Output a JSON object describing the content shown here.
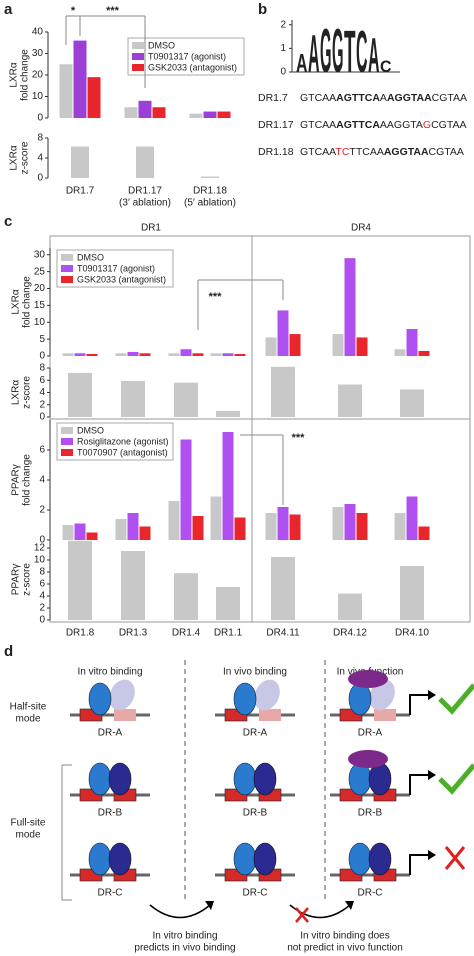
{
  "panels": [
    "a",
    "b",
    "c",
    "d"
  ],
  "chart_data": [
    {
      "type": "bar",
      "y_label": [
        "LXRα",
        "fold change"
      ],
      "ylim": [
        0,
        40
      ],
      "yticks": [
        0,
        10,
        20,
        30,
        40
      ],
      "legend": "top-right",
      "series": [
        {
          "name": "DMSO",
          "color": "#c8c8c8",
          "values": [
            25,
            5,
            2
          ]
        },
        {
          "name": "T0901317 (agonist)",
          "color": "#9b3fd6",
          "values": [
            36,
            8,
            3
          ]
        },
        {
          "name": "GSK2033 (antagonist)",
          "color": "#e8262b",
          "values": [
            19,
            5,
            3
          ]
        }
      ],
      "annotations": [
        "*",
        "***"
      ]
    },
    {
      "type": "bar",
      "y_label": [
        "LXRα",
        "z-score"
      ],
      "ylim": [
        0,
        8
      ],
      "yticks": [
        0,
        4,
        8
      ],
      "color": "#c8c8c8",
      "categories": [
        "DR1.7",
        "DR1.17",
        "DR1.18"
      ],
      "category_sublabels": [
        null,
        "(3′ ablation)",
        "(5′ ablation)"
      ],
      "values": [
        6.3,
        6.3,
        0.3
      ]
    },
    {
      "type": "bar",
      "group_labels": [
        "DR1",
        "DR4"
      ],
      "y_label": [
        "LXRα",
        "fold change"
      ],
      "ylim": [
        0,
        32
      ],
      "yticks": [
        0,
        5,
        10,
        15,
        20,
        25,
        30
      ],
      "legend": "top-left",
      "series": [
        {
          "name": "DMSO",
          "color": "#c8c8c8",
          "values": [
            0.8,
            0.8,
            0.8,
            0.8,
            5.5,
            6.5,
            2
          ]
        },
        {
          "name": "T0901317 (agonist)",
          "color": "#b050f0",
          "values": [
            0.8,
            1.2,
            2,
            0.8,
            13.5,
            29,
            8
          ]
        },
        {
          "name": "GSK2033 (antagonist)",
          "color": "#e8262b",
          "values": [
            0.6,
            0.8,
            0.8,
            0.6,
            6.5,
            5.5,
            1.5
          ]
        }
      ],
      "annotations": [
        "***"
      ]
    },
    {
      "type": "bar",
      "y_label": [
        "LXRα",
        "z-score"
      ],
      "ylim": [
        0,
        8
      ],
      "yticks": [
        0,
        2,
        4,
        6,
        8
      ],
      "color": "#c8c8c8",
      "values": [
        7.2,
        5.9,
        5.6,
        1,
        8.2,
        5.3,
        4.5
      ]
    },
    {
      "type": "bar",
      "y_label": [
        "PPARγ",
        "fold change"
      ],
      "ylim": [
        0,
        8
      ],
      "yticks": [
        0,
        2,
        4,
        6
      ],
      "legend": "top-left",
      "series": [
        {
          "name": "DMSO",
          "color": "#c8c8c8",
          "values": [
            1,
            1.4,
            2.6,
            2.9,
            1.8,
            2.2,
            1.8
          ]
        },
        {
          "name": "Rosiglitazone (agonist)",
          "color": "#b050f0",
          "values": [
            1.1,
            1.8,
            6.7,
            7.2,
            2.2,
            2.4,
            2.9
          ]
        },
        {
          "name": "T0070907 (antagonist)",
          "color": "#e8262b",
          "values": [
            0.5,
            0.9,
            1.6,
            1.5,
            1.7,
            1.8,
            0.9
          ]
        }
      ],
      "annotations": [
        "***"
      ]
    },
    {
      "type": "bar",
      "y_label": [
        "PPARγ",
        "z-score"
      ],
      "ylim": [
        0,
        13.5
      ],
      "yticks": [
        0,
        2,
        4,
        6,
        8,
        10,
        12
      ],
      "color": "#c8c8c8",
      "categories": [
        "DR1.8",
        "DR1.3",
        "DR1.4",
        "DR1.1",
        "DR4.11",
        "DR4.12",
        "DR4.10"
      ],
      "values": [
        13.2,
        11.5,
        7.8,
        5.5,
        10.5,
        4.4,
        9
      ]
    }
  ],
  "logo": {
    "letters": [
      "A",
      "A",
      "G",
      "G",
      "T",
      "C",
      "A",
      "C"
    ],
    "heights": [
      0.8,
      1.6,
      1.9,
      1.9,
      1.8,
      1.8,
      1.5,
      0.5
    ],
    "ylim": [
      0,
      2.2
    ],
    "yticks": [
      0,
      1,
      2
    ]
  },
  "sequences": [
    {
      "name": "DR1.7",
      "parts": [
        {
          "text": "GTCAA"
        },
        {
          "text": "AGTTCA",
          "bold": true
        },
        {
          "text": "A"
        },
        {
          "text": "AGGTAA",
          "bold": true
        },
        {
          "text": "CGTAA"
        }
      ]
    },
    {
      "name": "DR1.17",
      "parts": [
        {
          "text": "GTCAA"
        },
        {
          "text": "AGTTCA",
          "bold": true
        },
        {
          "text": "AAGGTA"
        },
        {
          "text": "G",
          "color": "#e8262b"
        },
        {
          "text": "CGTAA"
        }
      ]
    },
    {
      "name": "DR1.18",
      "parts": [
        {
          "text": "GTCAA"
        },
        {
          "text": "TC",
          "color": "#e8262b"
        },
        {
          "text": "TTCAA"
        },
        {
          "text": "AGGTAA",
          "bold": true
        },
        {
          "text": "CGTAA"
        }
      ]
    }
  ],
  "diagram": {
    "columns": [
      "In vitro binding",
      "In vivo binding",
      "In vivo function"
    ],
    "half_site_label": [
      "Half-site",
      "mode"
    ],
    "full_site_label": [
      "Full-site",
      "mode"
    ],
    "sites": [
      "DR-A",
      "DR-B",
      "DR-C"
    ],
    "captions": [
      [
        "In vitro binding",
        "predicts in vivo binding"
      ],
      [
        "In vitro binding does",
        "not predict in vivo function"
      ]
    ]
  }
}
